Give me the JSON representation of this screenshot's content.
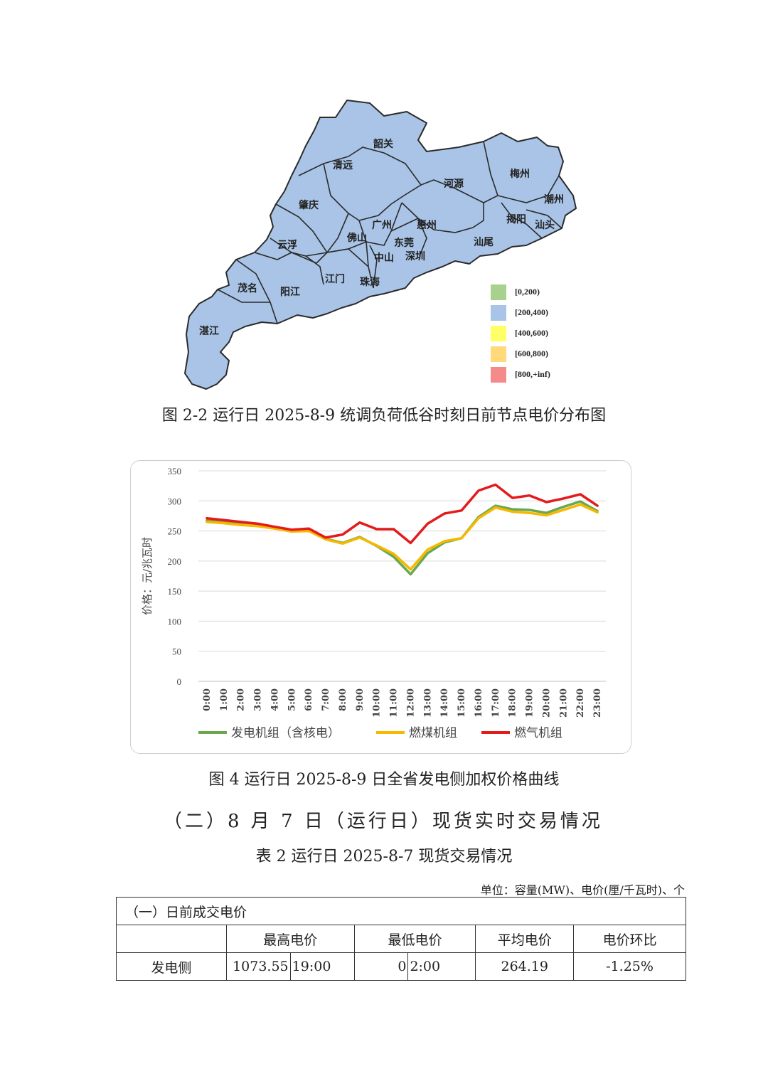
{
  "map": {
    "cities": [
      {
        "name": "韶关"
      },
      {
        "name": "清远"
      },
      {
        "name": "河源"
      },
      {
        "name": "梅州"
      },
      {
        "name": "潮州"
      },
      {
        "name": "肇庆"
      },
      {
        "name": "广州"
      },
      {
        "name": "惠州"
      },
      {
        "name": "揭阳"
      },
      {
        "name": "汕头"
      },
      {
        "name": "佛山"
      },
      {
        "name": "东莞"
      },
      {
        "name": "云浮"
      },
      {
        "name": "深圳"
      },
      {
        "name": "汕尾"
      },
      {
        "name": "中山"
      },
      {
        "name": "江门"
      },
      {
        "name": "茂名"
      },
      {
        "name": "阳江"
      },
      {
        "name": "珠海"
      },
      {
        "name": "湛江"
      }
    ],
    "fill_color": "#a9c4e6",
    "legend": [
      {
        "label": "[0,200)",
        "color": "#a9d18e"
      },
      {
        "label": "[200,400)",
        "color": "#a9c4e6"
      },
      {
        "label": "[400,600)",
        "color": "#ffff66"
      },
      {
        "label": "[600,800)",
        "color": "#ffd97a"
      },
      {
        "label": "[800,+inf)",
        "color": "#f48a8a"
      }
    ]
  },
  "caption1": "图 2-2  运行日 2025-8-9 统调负荷低谷时刻日前节点电价分布图",
  "chart_data": {
    "type": "line",
    "ylabel": "价格：元/兆瓦时",
    "ylim": [
      0,
      350
    ],
    "yticks": [
      0,
      50,
      100,
      150,
      200,
      250,
      300,
      350
    ],
    "grid": true,
    "legend_position": "bottom",
    "categories": [
      "0:00",
      "1:00",
      "2:00",
      "3:00",
      "4:00",
      "5:00",
      "6:00",
      "7:00",
      "8:00",
      "9:00",
      "10:00",
      "11:00",
      "12:00",
      "13:00",
      "14:00",
      "15:00",
      "16:00",
      "17:00",
      "18:00",
      "19:00",
      "20:00",
      "21:00",
      "22:00",
      "23:00"
    ],
    "series": [
      {
        "name": "发电机组（含核电）",
        "color": "#6aa84f",
        "values": [
          267,
          265,
          262,
          259,
          255,
          251,
          251,
          237,
          230,
          240,
          225,
          207,
          178,
          213,
          231,
          238,
          273,
          292,
          286,
          285,
          280,
          290,
          299,
          283
        ]
      },
      {
        "name": "燃煤机组",
        "color": "#f6b800",
        "values": [
          265,
          263,
          260,
          258,
          254,
          249,
          250,
          236,
          229,
          239,
          226,
          212,
          186,
          219,
          233,
          238,
          271,
          289,
          282,
          280,
          276,
          285,
          294,
          281
        ]
      },
      {
        "name": "燃气机组",
        "color": "#e31b1b",
        "values": [
          271,
          268,
          265,
          262,
          257,
          252,
          254,
          239,
          244,
          264,
          253,
          253,
          230,
          262,
          279,
          284,
          317,
          327,
          305,
          309,
          298,
          304,
          311,
          292
        ]
      }
    ]
  },
  "caption2": "图 4  运行日 2025-8-9 日全省发电侧加权价格曲线",
  "section_title": "（二）8 月 7 日（运行日）现货实时交易情况",
  "table_title": "表 2  运行日 2025-8-7 现货交易情况",
  "unit": "单位：容量(MW)、电价(厘/千瓦时)、个",
  "table": {
    "section": "（一）日前成交电价",
    "headers": [
      "最高电价",
      "最低电价",
      "平均电价",
      "电价环比"
    ],
    "row": {
      "label": "发电侧",
      "max_price": "1073.55",
      "max_time": "19:00",
      "min_price": "0",
      "min_time": "2:00",
      "avg_price": "264.19",
      "ratio": "-1.25%"
    }
  }
}
